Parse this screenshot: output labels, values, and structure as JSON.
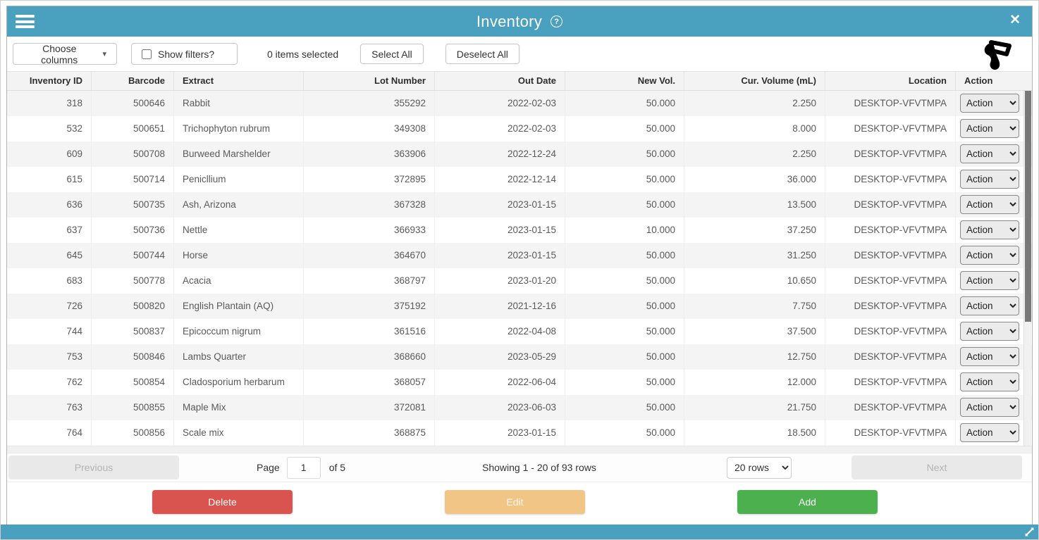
{
  "header": {
    "title": "Inventory",
    "icons": {
      "menu": "hamburger-icon",
      "help": "help-icon",
      "close": "close-icon"
    }
  },
  "toolbar": {
    "choose_columns_label": "Choose columns",
    "show_filters_label": "Show filters?",
    "show_filters_checked": false,
    "items_selected_text": "0 items selected",
    "select_all_label": "Select All",
    "deselect_all_label": "Deselect All",
    "scanner_icon": "barcode-scanner-icon"
  },
  "table": {
    "columns": [
      {
        "label": "Inventory ID",
        "field": "inventory_id"
      },
      {
        "label": "Barcode",
        "field": "barcode"
      },
      {
        "label": "Extract",
        "field": "extract"
      },
      {
        "label": "Lot Number",
        "field": "lot_number"
      },
      {
        "label": "Out Date",
        "field": "out_date"
      },
      {
        "label": "New Vol.",
        "field": "new_vol"
      },
      {
        "label": "Cur. Volume (mL)",
        "field": "cur_volume"
      },
      {
        "label": "Location",
        "field": "location"
      },
      {
        "label": "Action",
        "field": "action"
      }
    ],
    "rows": [
      {
        "inventory_id": "318",
        "barcode": "500646",
        "extract": "Rabbit",
        "lot_number": "355292",
        "out_date": "2022-02-03",
        "new_vol": "50.000",
        "cur_volume": "2.250",
        "location": "DESKTOP-VFVTMPA",
        "action": "Action"
      },
      {
        "inventory_id": "532",
        "barcode": "500651",
        "extract": "Trichophyton rubrum",
        "lot_number": "349308",
        "out_date": "2022-02-03",
        "new_vol": "50.000",
        "cur_volume": "8.000",
        "location": "DESKTOP-VFVTMPA",
        "action": "Action"
      },
      {
        "inventory_id": "609",
        "barcode": "500708",
        "extract": "Burweed Marshelder",
        "lot_number": "363906",
        "out_date": "2022-12-24",
        "new_vol": "50.000",
        "cur_volume": "2.250",
        "location": "DESKTOP-VFVTMPA",
        "action": "Action"
      },
      {
        "inventory_id": "615",
        "barcode": "500714",
        "extract": "Penicllium",
        "lot_number": "372895",
        "out_date": "2022-12-14",
        "new_vol": "50.000",
        "cur_volume": "36.000",
        "location": "DESKTOP-VFVTMPA",
        "action": "Action"
      },
      {
        "inventory_id": "636",
        "barcode": "500735",
        "extract": "Ash, Arizona",
        "lot_number": "367328",
        "out_date": "2023-01-15",
        "new_vol": "50.000",
        "cur_volume": "13.500",
        "location": "DESKTOP-VFVTMPA",
        "action": "Action"
      },
      {
        "inventory_id": "637",
        "barcode": "500736",
        "extract": "Nettle",
        "lot_number": "366933",
        "out_date": "2023-01-15",
        "new_vol": "10.000",
        "cur_volume": "37.250",
        "location": "DESKTOP-VFVTMPA",
        "action": "Action"
      },
      {
        "inventory_id": "645",
        "barcode": "500744",
        "extract": "Horse",
        "lot_number": "364670",
        "out_date": "2023-01-15",
        "new_vol": "50.000",
        "cur_volume": "31.250",
        "location": "DESKTOP-VFVTMPA",
        "action": "Action"
      },
      {
        "inventory_id": "683",
        "barcode": "500778",
        "extract": "Acacia",
        "lot_number": "368797",
        "out_date": "2023-01-20",
        "new_vol": "50.000",
        "cur_volume": "10.650",
        "location": "DESKTOP-VFVTMPA",
        "action": "Action"
      },
      {
        "inventory_id": "726",
        "barcode": "500820",
        "extract": "English Plantain (AQ)",
        "lot_number": "375192",
        "out_date": "2021-12-16",
        "new_vol": "50.000",
        "cur_volume": "7.750",
        "location": "DESKTOP-VFVTMPA",
        "action": "Action"
      },
      {
        "inventory_id": "744",
        "barcode": "500837",
        "extract": "Epicoccum nigrum",
        "lot_number": "361516",
        "out_date": "2022-04-08",
        "new_vol": "50.000",
        "cur_volume": "37.500",
        "location": "DESKTOP-VFVTMPA",
        "action": "Action"
      },
      {
        "inventory_id": "753",
        "barcode": "500846",
        "extract": "Lambs Quarter",
        "lot_number": "368660",
        "out_date": "2023-05-29",
        "new_vol": "50.000",
        "cur_volume": "12.750",
        "location": "DESKTOP-VFVTMPA",
        "action": "Action"
      },
      {
        "inventory_id": "762",
        "barcode": "500854",
        "extract": "Cladosporium herbarum",
        "lot_number": "368057",
        "out_date": "2022-06-04",
        "new_vol": "50.000",
        "cur_volume": "12.000",
        "location": "DESKTOP-VFVTMPA",
        "action": "Action"
      },
      {
        "inventory_id": "763",
        "barcode": "500855",
        "extract": "Maple Mix",
        "lot_number": "372081",
        "out_date": "2023-06-03",
        "new_vol": "50.000",
        "cur_volume": "21.750",
        "location": "DESKTOP-VFVTMPA",
        "action": "Action"
      },
      {
        "inventory_id": "764",
        "barcode": "500856",
        "extract": "Scale mix",
        "lot_number": "368875",
        "out_date": "2023-01-15",
        "new_vol": "50.000",
        "cur_volume": "18.500",
        "location": "DESKTOP-VFVTMPA",
        "action": "Action"
      }
    ]
  },
  "pagination": {
    "previous_label": "Previous",
    "page_label": "Page",
    "page_value": "1",
    "of_label": "of 5",
    "showing_text": "Showing 1 - 20 of 93 rows",
    "rows_per_page": "20 rows",
    "next_label": "Next"
  },
  "actions": {
    "delete_label": "Delete",
    "edit_label": "Edit",
    "add_label": "Add"
  },
  "misc": {
    "resize_icon": "resize-diagonal-icon"
  },
  "colors": {
    "accent_teal": "#4aa0bf",
    "delete_red": "#d9534f",
    "edit_tan": "#f0c586",
    "add_green": "#4cb04f",
    "scrollbar_thumb": "#787878"
  }
}
